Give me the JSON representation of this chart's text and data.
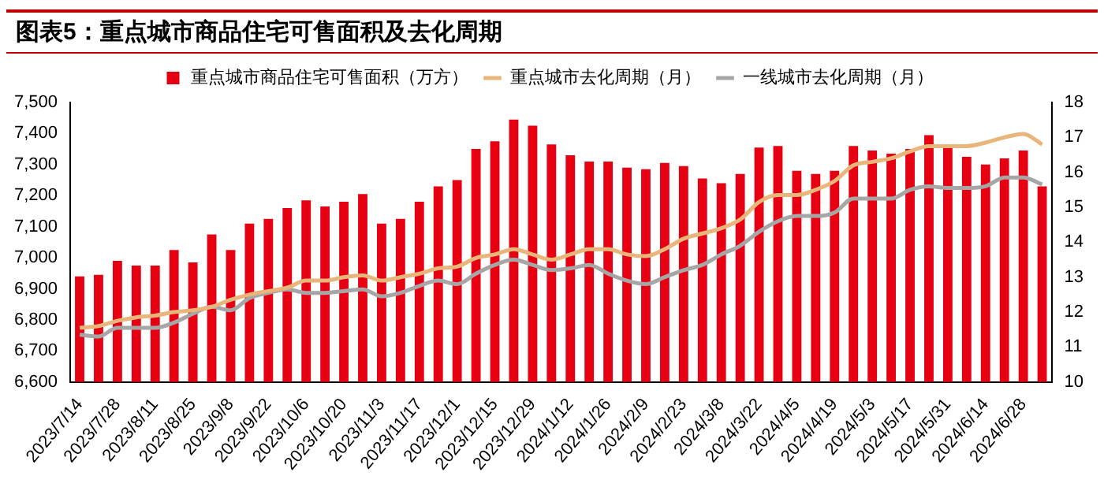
{
  "chart_data": {
    "type": "bar",
    "title": "图表5：重点城市商品住宅可售面积及去化周期",
    "categories": [
      "2023/7/14",
      null,
      "2023/7/28",
      null,
      "2023/8/11",
      null,
      "2023/8/25",
      null,
      "2023/9/8",
      null,
      "2023/9/22",
      null,
      "2023/10/6",
      null,
      "2023/10/20",
      null,
      "2023/11/3",
      null,
      "2023/11/17",
      null,
      "2023/12/1",
      null,
      "2023/12/15",
      null,
      "2023/12/29",
      null,
      "2024/1/12",
      null,
      "2024/1/26",
      null,
      "2024/2/9",
      null,
      "2024/2/23",
      null,
      "2024/3/8",
      null,
      "2024/3/22",
      null,
      "2024/4/5",
      null,
      "2024/4/19",
      null,
      "2024/5/3",
      null,
      "2024/5/17",
      null,
      "2024/5/31",
      null,
      "2024/6/14",
      null,
      "2024/6/28",
      null
    ],
    "series": [
      {
        "name": "重点城市商品住宅可售面积（万方）",
        "color": "#e60012",
        "values": [
          6940,
          6945,
          6990,
          6975,
          6975,
          7025,
          6985,
          7075,
          7025,
          7110,
          7125,
          7160,
          7185,
          7165,
          7180,
          7205,
          7110,
          7125,
          7180,
          7230,
          7250,
          7350,
          7375,
          7445,
          7425,
          7365,
          7330,
          7310,
          7310,
          7290,
          7285,
          7305,
          7295,
          7255,
          7240,
          7270,
          7355,
          7360,
          7280,
          7270,
          7280,
          7360,
          7345,
          7335,
          7350,
          7395,
          7355,
          7325,
          7300,
          7320,
          7345,
          7230
        ]
      },
      {
        "name": "重点城市去化周期（月）",
        "type": "line",
        "axis": "y2",
        "color": "#e8b57a",
        "values": [
          11.55,
          11.6,
          11.75,
          11.85,
          11.9,
          12.0,
          12.05,
          12.15,
          12.35,
          12.5,
          12.6,
          12.7,
          12.9,
          12.9,
          13.0,
          13.05,
          12.9,
          13.0,
          13.1,
          13.25,
          13.3,
          13.55,
          13.65,
          13.8,
          13.65,
          13.5,
          13.65,
          13.8,
          13.8,
          13.65,
          13.6,
          13.8,
          14.1,
          14.25,
          14.4,
          14.65,
          15.15,
          15.35,
          15.35,
          15.5,
          15.75,
          16.2,
          16.3,
          16.4,
          16.6,
          16.75,
          16.75,
          16.75,
          16.85,
          17.0,
          17.1,
          16.8
        ]
      },
      {
        "name": "一线城市去化周期（月）",
        "type": "line",
        "axis": "y2",
        "color": "#a6a6a6",
        "values": [
          11.35,
          11.3,
          11.55,
          11.55,
          11.55,
          11.7,
          11.95,
          12.15,
          12.05,
          12.4,
          12.55,
          12.65,
          12.55,
          12.55,
          12.6,
          12.65,
          12.45,
          12.55,
          12.75,
          12.9,
          12.8,
          13.1,
          13.35,
          13.5,
          13.35,
          13.2,
          13.25,
          13.35,
          13.1,
          12.9,
          12.8,
          13.0,
          13.2,
          13.35,
          13.65,
          13.9,
          14.3,
          14.6,
          14.75,
          14.75,
          14.85,
          15.25,
          15.25,
          15.25,
          15.5,
          15.6,
          15.55,
          15.55,
          15.6,
          15.85,
          15.85,
          15.65
        ]
      }
    ],
    "ylim": [
      6600,
      7500
    ],
    "yticks": [
      {
        "value": 6600,
        "label": "6,600"
      },
      {
        "value": 6700,
        "label": "6,700"
      },
      {
        "value": 6800,
        "label": "6,800"
      },
      {
        "value": 6900,
        "label": "6,900"
      },
      {
        "value": 7000,
        "label": "7,000"
      },
      {
        "value": 7100,
        "label": "7,100"
      },
      {
        "value": 7200,
        "label": "7,200"
      },
      {
        "value": 7300,
        "label": "7,300"
      },
      {
        "value": 7400,
        "label": "7,400"
      },
      {
        "value": 7500,
        "label": "7,500"
      }
    ],
    "y2lim": [
      10,
      18
    ],
    "y2ticks": [
      10,
      11,
      12,
      13,
      14,
      15,
      16,
      17,
      18
    ],
    "grid": false,
    "legend": "top",
    "marker": "none",
    "line_style": "solid"
  }
}
